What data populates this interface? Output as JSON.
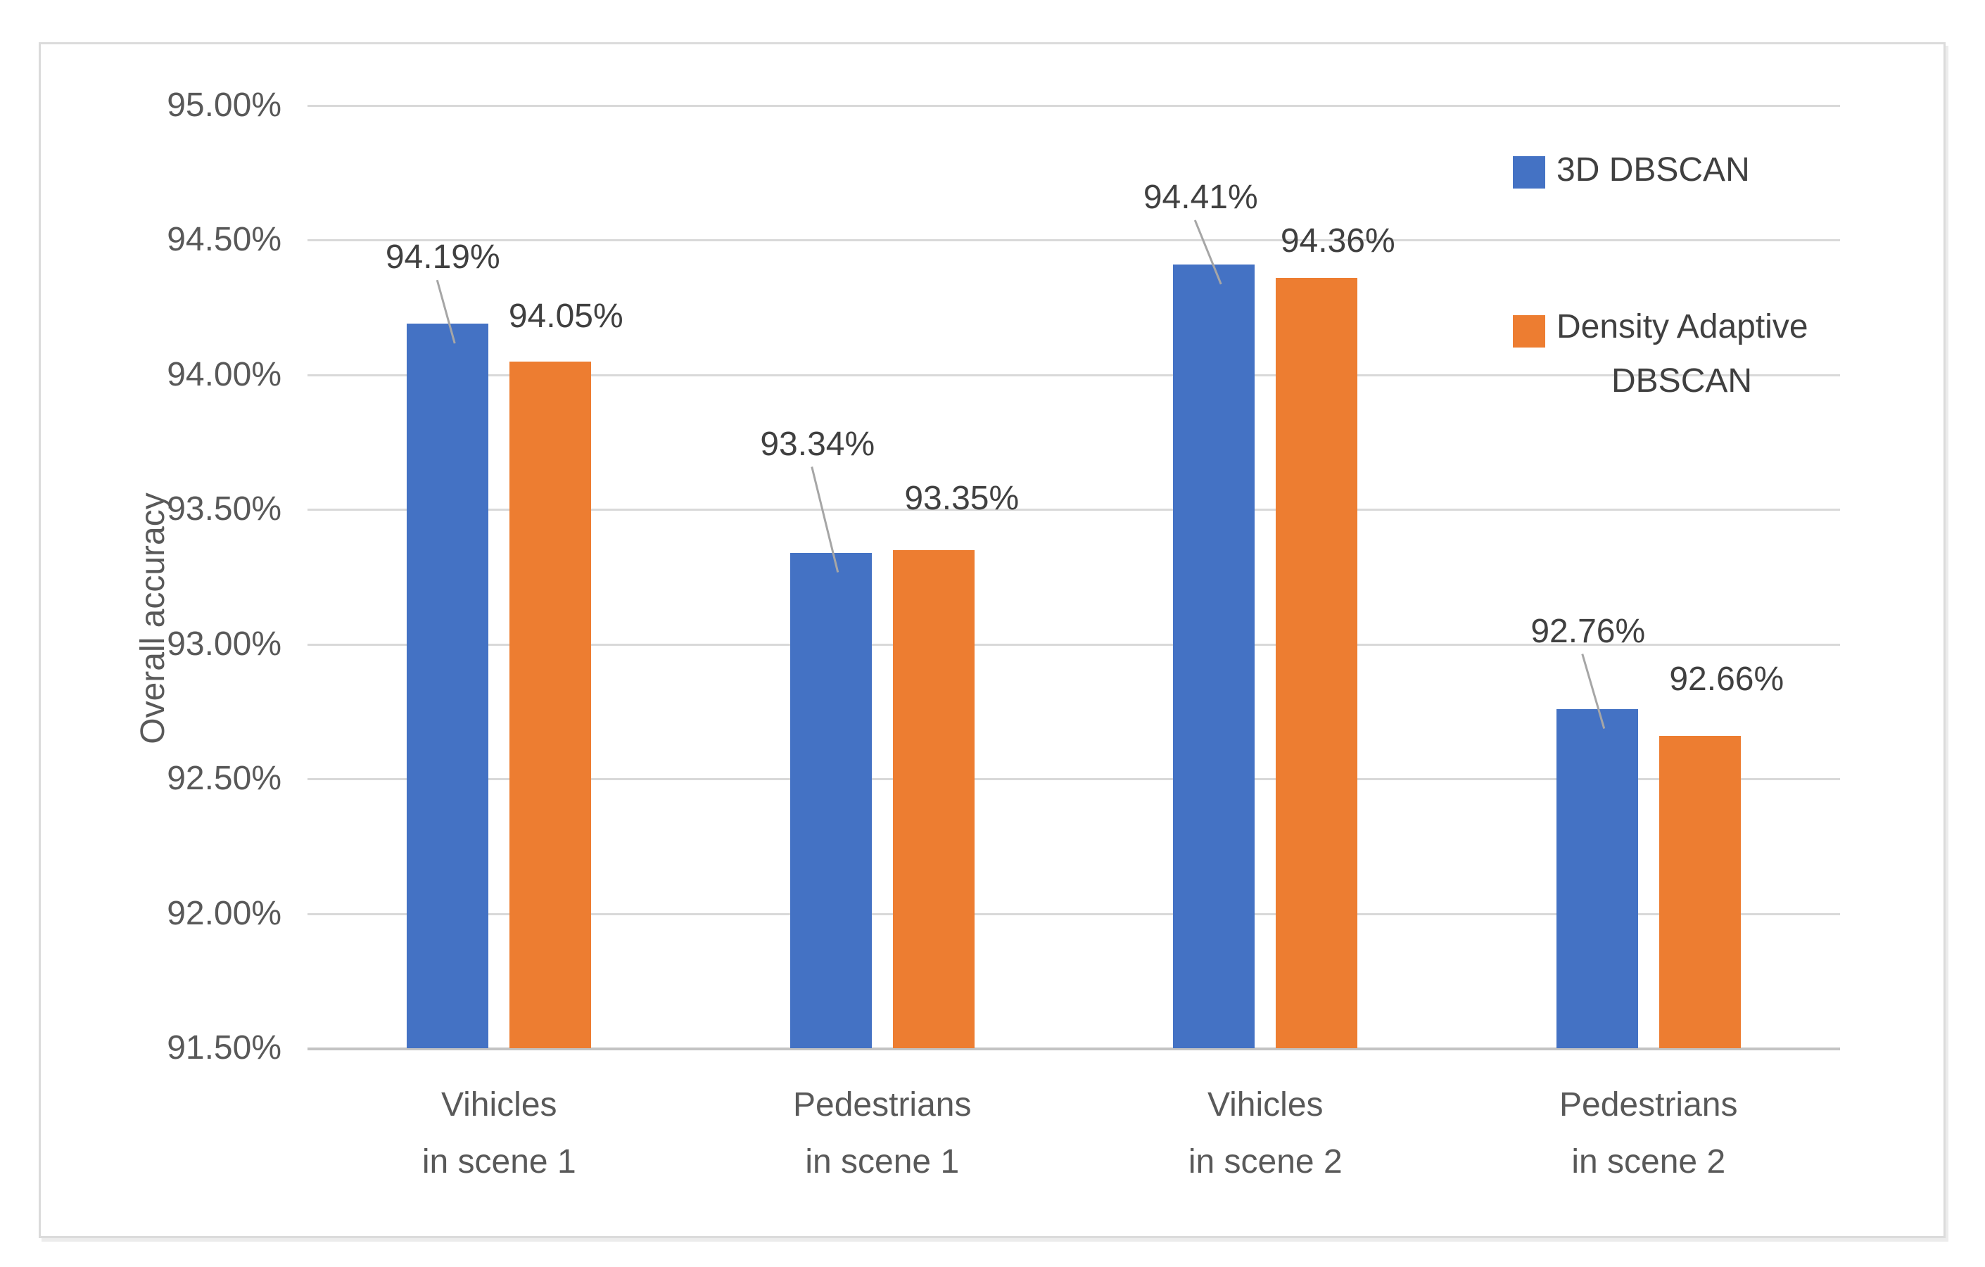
{
  "chart_data": {
    "type": "bar",
    "title": "",
    "xlabel": "",
    "ylabel": "Overall accuracy",
    "categories": [
      [
        "Vihicles",
        "in scene 1"
      ],
      [
        "Pedestrians",
        "in scene 1"
      ],
      [
        "Vihicles",
        "in scene 2"
      ],
      [
        "Pedestrians",
        "in scene 2"
      ]
    ],
    "series": [
      {
        "name": "3D DBSCAN",
        "color": "#4472C4",
        "values": [
          94.19,
          93.34,
          94.41,
          92.76
        ],
        "data_labels": [
          "94.19%",
          "93.34%",
          "94.41%",
          "92.76%"
        ],
        "has_leader_lines": true
      },
      {
        "name": "Density Adaptive DBSCAN",
        "color": "#ED7D31",
        "values": [
          94.05,
          93.35,
          94.36,
          92.66
        ],
        "data_labels": [
          "94.05%",
          "93.35%",
          "94.36%",
          "92.66%"
        ],
        "has_leader_lines": false
      }
    ],
    "y_axis": {
      "min": 91.5,
      "max": 95.0,
      "step": 0.5,
      "tick_labels": [
        "95.00%",
        "94.50%",
        "94.00%",
        "93.50%",
        "93.00%",
        "92.50%",
        "92.00%",
        "91.50%"
      ]
    },
    "legend": {
      "position": "right",
      "entries": [
        {
          "label_lines": [
            "3D DBSCAN"
          ],
          "color": "#4472C4"
        },
        {
          "label_lines": [
            "Density Adaptive",
            "DBSCAN"
          ],
          "color": "#ED7D31"
        }
      ]
    },
    "grid": true,
    "colors": {
      "gridline": "#D9D9D9",
      "axis_line": "#C3C3C3",
      "leader_line": "#A6A6A6",
      "tick_text": "#595959",
      "label_text": "#404040"
    }
  }
}
